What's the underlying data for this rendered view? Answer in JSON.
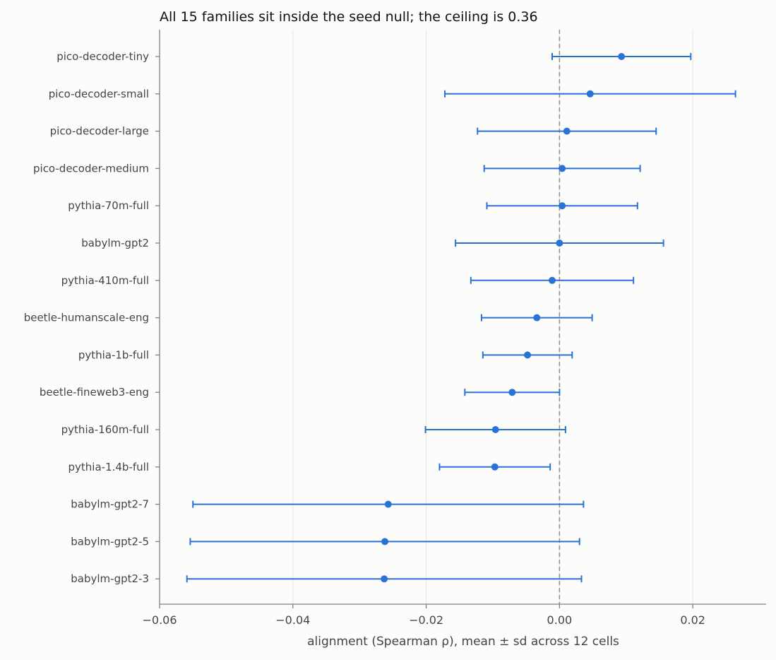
{
  "chart_data": {
    "type": "scatter",
    "title": "All 15 families sit inside the seed null; the ceiling is 0.36",
    "xlabel": "alignment (Spearman ρ), mean ± sd across 12 cells",
    "ylabel": "",
    "xlim": [
      -0.06,
      0.031
    ],
    "xticks": [
      -0.06,
      -0.04,
      -0.02,
      0.0,
      0.02
    ],
    "xtick_labels": [
      "−0.06",
      "−0.04",
      "−0.02",
      "0.00",
      "0.02"
    ],
    "grid": "vertical",
    "reference_line": 0.0,
    "color": "#2a72d4",
    "categories": [
      "pico-decoder-tiny",
      "pico-decoder-small",
      "pico-decoder-large",
      "pico-decoder-medium",
      "pythia-70m-full",
      "babylm-gpt2",
      "pythia-410m-full",
      "beetle-humanscale-eng",
      "pythia-1b-full",
      "beetle-fineweb3-eng",
      "pythia-160m-full",
      "pythia-1.4b-full",
      "babylm-gpt2-7",
      "babylm-gpt2-5",
      "babylm-gpt2-3"
    ],
    "series": [
      {
        "mean": [
          0.0093,
          0.0046,
          0.0011,
          0.0004,
          0.0004,
          0.0,
          -0.0011,
          -0.0034,
          -0.0048,
          -0.0071,
          -0.0096,
          -0.0097,
          -0.0257,
          -0.0262,
          -0.0263
        ],
        "sd": [
          0.0104,
          0.0218,
          0.0134,
          0.0117,
          0.0113,
          0.0156,
          0.0122,
          0.0083,
          0.0067,
          0.0071,
          0.0105,
          0.0083,
          0.0293,
          0.0292,
          0.0296
        ]
      }
    ]
  }
}
